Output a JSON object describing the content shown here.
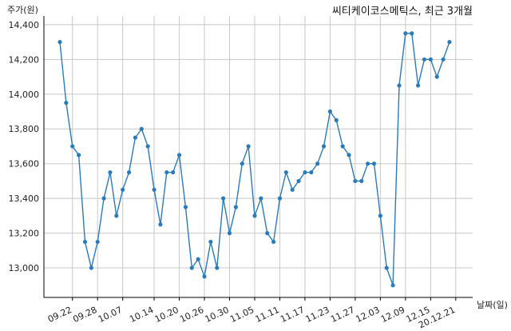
{
  "chart_data": {
    "type": "line",
    "title": "씨티케이코스메틱스, 최근 3개월",
    "xlabel": "날짜(일)",
    "ylabel": "주가(원)",
    "ylim": [
      12830,
      14450
    ],
    "yticks": [
      13000,
      13200,
      13400,
      13600,
      13800,
      14000,
      14200,
      14400
    ],
    "ytick_labels": [
      "13,000",
      "13,200",
      "13,400",
      "13,600",
      "13,800",
      "14,000",
      "14,200",
      "14,400"
    ],
    "xtick_labels": [
      "09.22",
      "09.28",
      "10.07",
      "10.14",
      "10.20",
      "10.26",
      "10.30",
      "11.05",
      "11.11",
      "11.17",
      "11.23",
      "11.27",
      "12.03",
      "12.09",
      "12.15",
      "20.12.21"
    ],
    "xtick_index": [
      2,
      6,
      10,
      15,
      19,
      23,
      27,
      31,
      35,
      39,
      43,
      47,
      51,
      55,
      59,
      63
    ],
    "grid": true,
    "color": "#2b7bb9",
    "series": [
      {
        "values": [
          14300,
          13950,
          13700,
          13650,
          13150,
          13000,
          13150,
          13400,
          13550,
          13300,
          13450,
          13550,
          13750,
          13800,
          13700,
          13450,
          13250,
          13550,
          13550,
          13650,
          13350,
          13000,
          13050,
          12950,
          13150,
          13000,
          13400,
          13200,
          13350,
          13600,
          13700,
          13300,
          13400,
          13200,
          13150,
          13400,
          13550,
          13450,
          13500,
          13550,
          13550,
          13600,
          13700,
          13900,
          13850,
          13700,
          13650,
          13500,
          13500,
          13600,
          13600,
          13300,
          13000,
          12900,
          14050,
          14350,
          14350,
          14050,
          14200,
          14200,
          14100,
          14200,
          14300
        ]
      }
    ]
  }
}
